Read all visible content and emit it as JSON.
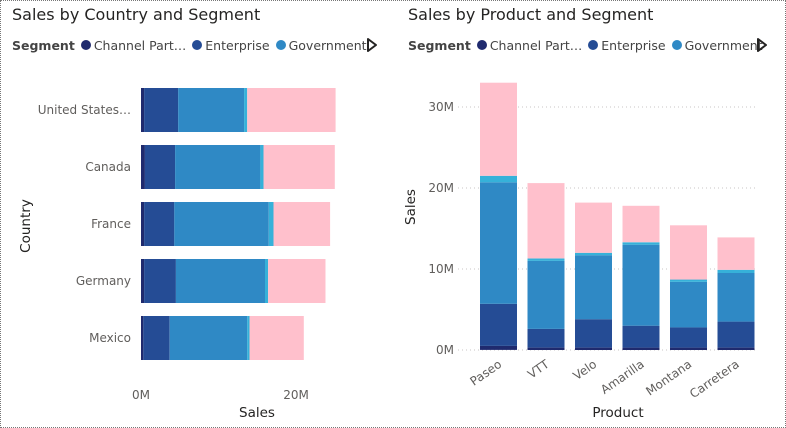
{
  "charts": [
    {
      "title": "Sales by Country and Segment",
      "legend_title": "Segment",
      "legend": [
        {
          "label": "Channel Part…",
          "color": "#1f2a6e"
        },
        {
          "label": "Enterprise",
          "color": "#254c95"
        },
        {
          "label": "Government",
          "color": "#2f89c5"
        }
      ]
    },
    {
      "title": "Sales by Product and Segment",
      "legend_title": "Segment",
      "legend": [
        {
          "label": "Channel Part…",
          "color": "#1f2a6e"
        },
        {
          "label": "Enterprise",
          "color": "#254c95"
        },
        {
          "label": "Government",
          "color": "#2f89c5"
        }
      ]
    }
  ],
  "colors": {
    "channel_partners": "#1f2a6e",
    "enterprise": "#254c95",
    "government": "#2f89c5",
    "light_blue": "#36b1d9",
    "pink": "#ffc0cc"
  },
  "chart_data": [
    {
      "type": "bar",
      "orientation": "horizontal",
      "stacked": true,
      "title": "Sales by Country and Segment",
      "xlabel": "Sales",
      "ylabel": "Country",
      "categories": [
        "United States…",
        "Canada",
        "France",
        "Germany",
        "Mexico"
      ],
      "x_ticks": [
        "0M",
        "20M"
      ],
      "xlim": [
        0,
        25
      ],
      "series": [
        {
          "name": "Channel Part…",
          "color": "#1f2a6e",
          "values": [
            0.4,
            0.5,
            0.4,
            0.4,
            0.3
          ]
        },
        {
          "name": "Enterprise",
          "color": "#254c95",
          "values": [
            4.4,
            3.9,
            3.9,
            4.1,
            3.4
          ]
        },
        {
          "name": "Government",
          "color": "#2f89c5",
          "values": [
            8.5,
            11.0,
            12.2,
            11.5,
            10.0
          ]
        },
        {
          "color": "#36b1d9",
          "values": [
            0.4,
            0.4,
            0.6,
            0.4,
            0.3
          ]
        },
        {
          "color": "#ffc0cc",
          "values": [
            11.4,
            9.2,
            7.3,
            7.4,
            7.0
          ]
        }
      ]
    },
    {
      "type": "bar",
      "orientation": "vertical",
      "stacked": true,
      "title": "Sales by Product and Segment",
      "xlabel": "Product",
      "ylabel": "Sales",
      "categories": [
        "Paseo",
        "VTT",
        "Velo",
        "Amarilla",
        "Montana",
        "Carretera"
      ],
      "y_ticks": [
        "0M",
        "10M",
        "20M",
        "30M"
      ],
      "ylim": [
        0,
        33
      ],
      "series": [
        {
          "name": "Channel Part…",
          "color": "#1f2a6e",
          "values": [
            0.5,
            0.3,
            0.3,
            0.3,
            0.3,
            0.3
          ]
        },
        {
          "name": "Enterprise",
          "color": "#254c95",
          "values": [
            5.2,
            2.3,
            3.5,
            2.7,
            2.5,
            3.2
          ]
        },
        {
          "name": "Government",
          "color": "#2f89c5",
          "values": [
            15.0,
            8.4,
            7.9,
            10.0,
            5.6,
            6.0
          ]
        },
        {
          "color": "#36b1d9",
          "values": [
            0.8,
            0.3,
            0.3,
            0.3,
            0.3,
            0.4
          ]
        },
        {
          "color": "#ffc0cc",
          "values": [
            11.5,
            9.3,
            6.2,
            4.5,
            6.7,
            4.0
          ]
        }
      ]
    }
  ]
}
